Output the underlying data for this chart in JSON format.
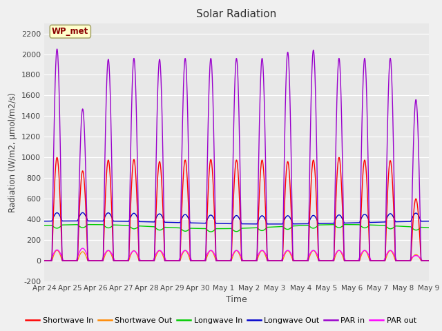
{
  "title": "Solar Radiation",
  "xlabel": "Time",
  "ylabel": "Radiation (W/m2, μmol/m2/s)",
  "ylim": [
    -200,
    2300
  ],
  "yticks": [
    -200,
    0,
    200,
    400,
    600,
    800,
    1000,
    1200,
    1400,
    1600,
    1800,
    2000,
    2200
  ],
  "fig_bg_color": "#f0f0f0",
  "plot_bg_color": "#e8e8e8",
  "legend_entries": [
    "Shortwave In",
    "Shortwave Out",
    "Longwave In",
    "Longwave Out",
    "PAR in",
    "PAR out"
  ],
  "legend_colors": [
    "#ff0000",
    "#ff8800",
    "#00cc00",
    "#0000cc",
    "#9900cc",
    "#ff00ff"
  ],
  "annotation_text": "WP_met",
  "annotation_color": "#8b0000",
  "annotation_bg": "#ffffcc",
  "n_days": 15,
  "day_labels": [
    "Apr 24",
    "Apr 25",
    "Apr 26",
    "Apr 27",
    "Apr 28",
    "Apr 29",
    "Apr 30",
    "May 1",
    "May 2",
    "May 3",
    "May 4",
    "May 5",
    "May 6",
    "May 7",
    "May 8",
    "May 9"
  ],
  "points_per_day": 96,
  "sw_in_peaks": [
    1000,
    870,
    975,
    980,
    960,
    975,
    980,
    975,
    975,
    960,
    975,
    1000,
    975,
    970,
    600,
    0
  ],
  "par_in_peaks": [
    2050,
    1470,
    1950,
    1960,
    1950,
    1960,
    1960,
    1960,
    1960,
    2020,
    2040,
    1960,
    1960,
    1960,
    1560,
    0
  ],
  "par_out_peaks": [
    105,
    120,
    100,
    95,
    100,
    100,
    100,
    100,
    100,
    100,
    100,
    100,
    100,
    100,
    50,
    0
  ]
}
